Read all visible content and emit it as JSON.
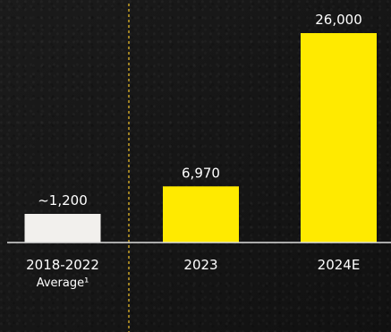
{
  "chart_data": {
    "type": "bar",
    "categories": [
      "2018-2022 Average¹",
      "2023",
      "2024E"
    ],
    "category_lines": [
      [
        "2018-2022",
        "Average¹"
      ],
      [
        "2023"
      ],
      [
        "2024E"
      ]
    ],
    "values": [
      1200,
      6970,
      26000
    ],
    "value_labels": [
      "~1,200",
      "6,970",
      "26,000"
    ],
    "bar_colors": [
      "#f2f0ed",
      "#ffea00",
      "#ffea00"
    ],
    "title": "",
    "xlabel": "",
    "ylabel": "",
    "ylim": [
      0,
      26000
    ],
    "grid": false,
    "legend": "none"
  },
  "colors": {
    "background": "#161616",
    "baseline": "#dcdcdc",
    "divider": "#c9a227",
    "text": "#ffffff"
  }
}
